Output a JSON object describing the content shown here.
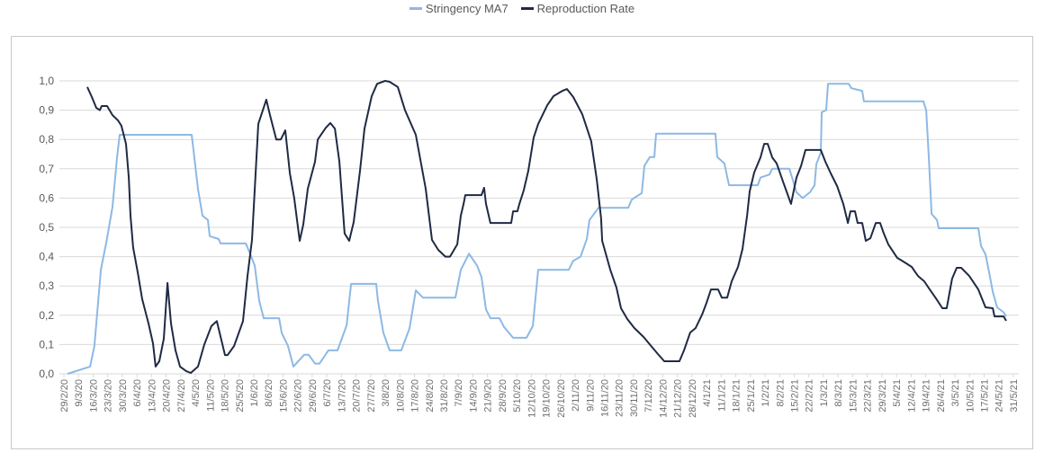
{
  "chart_data": {
    "type": "line",
    "title": "",
    "xlabel": "",
    "ylabel": "",
    "x_unit": "weeks from 29/2/20 (tick index)",
    "ylim": [
      0,
      1.0
    ],
    "yticks": [
      0.0,
      0.1,
      0.2,
      0.3,
      0.4,
      0.5,
      0.6,
      0.7,
      0.8,
      0.9,
      1.0
    ],
    "ytick_labels": [
      "0,0",
      "0,1",
      "0,2",
      "0,3",
      "0,4",
      "0,5",
      "0,6",
      "0,7",
      "0,8",
      "0,9",
      "1,0"
    ],
    "grid": true,
    "legend_position": "top-center",
    "categories": [
      "29/2/20",
      "9/3/20",
      "16/3/20",
      "23/3/20",
      "30/3/20",
      "6/4/20",
      "13/4/20",
      "20/4/20",
      "27/4/20",
      "4/5/20",
      "11/5/20",
      "18/5/20",
      "25/5/20",
      "1/6/20",
      "8/6/20",
      "15/6/20",
      "22/6/20",
      "29/6/20",
      "6/7/20",
      "13/7/20",
      "20/7/20",
      "27/7/20",
      "3/8/20",
      "10/8/20",
      "17/8/20",
      "24/8/20",
      "31/8/20",
      "7/9/20",
      "14/9/20",
      "21/9/20",
      "28/9/20",
      "5/10/20",
      "12/10/20",
      "19/10/20",
      "26/10/20",
      "2/11/20",
      "9/11/20",
      "16/11/20",
      "23/11/20",
      "30/11/20",
      "7/12/20",
      "14/12/20",
      "21/12/20",
      "28/12/20",
      "4/1/21",
      "11/1/21",
      "18/1/21",
      "25/1/21",
      "1/2/21",
      "8/2/21",
      "15/2/21",
      "22/2/21",
      "1/3/21",
      "8/3/21",
      "15/3/21",
      "22/3/21",
      "29/3/21",
      "5/4/21",
      "12/4/21",
      "19/4/21",
      "26/4/21",
      "3/5/21",
      "10/5/21",
      "17/5/21",
      "24/5/21",
      "31/5/21"
    ],
    "series": [
      {
        "name": "Stringency MA7",
        "color": "#8db9e4",
        "points": [
          [
            0.25,
            0
          ],
          [
            1.79,
            0.025
          ],
          [
            2.09,
            0.095
          ],
          [
            2.53,
            0.356
          ],
          [
            2.9,
            0.448
          ],
          [
            3.33,
            0.57
          ],
          [
            3.64,
            0.74
          ],
          [
            3.82,
            0.816
          ],
          [
            8.75,
            0.816
          ],
          [
            8.93,
            0.74
          ],
          [
            9.18,
            0.63
          ],
          [
            9.49,
            0.54
          ],
          [
            9.86,
            0.525
          ],
          [
            9.98,
            0.47
          ],
          [
            10.6,
            0.46
          ],
          [
            10.72,
            0.445
          ],
          [
            12.45,
            0.445
          ],
          [
            12.69,
            0.417
          ],
          [
            13.06,
            0.37
          ],
          [
            13.37,
            0.25
          ],
          [
            13.68,
            0.19
          ],
          [
            14.73,
            0.19
          ],
          [
            14.91,
            0.14
          ],
          [
            15.34,
            0.095
          ],
          [
            15.71,
            0.025
          ],
          [
            16.45,
            0.065
          ],
          [
            16.76,
            0.065
          ],
          [
            17.19,
            0.035
          ],
          [
            17.5,
            0.035
          ],
          [
            18.11,
            0.08
          ],
          [
            18.73,
            0.08
          ],
          [
            19.35,
            0.165
          ],
          [
            19.66,
            0.307
          ],
          [
            21.38,
            0.307
          ],
          [
            21.5,
            0.25
          ],
          [
            21.87,
            0.14
          ],
          [
            22.3,
            0.08
          ],
          [
            23.1,
            0.08
          ],
          [
            23.66,
            0.155
          ],
          [
            24.09,
            0.285
          ],
          [
            24.58,
            0.26
          ],
          [
            26.8,
            0.26
          ],
          [
            27.17,
            0.355
          ],
          [
            27.73,
            0.41
          ],
          [
            28.28,
            0.37
          ],
          [
            28.59,
            0.33
          ],
          [
            28.9,
            0.22
          ],
          [
            29.2,
            0.19
          ],
          [
            29.82,
            0.19
          ],
          [
            30.13,
            0.16
          ],
          [
            30.75,
            0.123
          ],
          [
            31.67,
            0.123
          ],
          [
            32.1,
            0.163
          ],
          [
            32.47,
            0.355
          ],
          [
            34.56,
            0.355
          ],
          [
            34.87,
            0.386
          ],
          [
            35.37,
            0.4
          ],
          [
            35.8,
            0.46
          ],
          [
            35.98,
            0.525
          ],
          [
            36.6,
            0.567
          ],
          [
            38.63,
            0.567
          ],
          [
            38.88,
            0.595
          ],
          [
            39.56,
            0.617
          ],
          [
            39.74,
            0.71
          ],
          [
            40.11,
            0.74
          ],
          [
            40.42,
            0.74
          ],
          [
            40.54,
            0.82
          ],
          [
            44.6,
            0.82
          ],
          [
            44.73,
            0.74
          ],
          [
            45.22,
            0.718
          ],
          [
            45.53,
            0.644
          ],
          [
            47.5,
            0.644
          ],
          [
            47.69,
            0.67
          ],
          [
            48.3,
            0.68
          ],
          [
            48.49,
            0.7
          ],
          [
            49.66,
            0.7
          ],
          [
            49.85,
            0.67
          ],
          [
            50.15,
            0.62
          ],
          [
            50.58,
            0.6
          ],
          [
            51.08,
            0.62
          ],
          [
            51.39,
            0.644
          ],
          [
            51.51,
            0.715
          ],
          [
            51.82,
            0.755
          ],
          [
            51.88,
            0.893
          ],
          [
            52.19,
            0.9
          ],
          [
            52.31,
            0.99
          ],
          [
            53.73,
            0.99
          ],
          [
            53.91,
            0.975
          ],
          [
            54.65,
            0.966
          ],
          [
            54.77,
            0.93
          ],
          [
            58.84,
            0.93
          ],
          [
            59.03,
            0.9
          ],
          [
            59.21,
            0.74
          ],
          [
            59.4,
            0.546
          ],
          [
            59.77,
            0.525
          ],
          [
            59.89,
            0.497
          ],
          [
            62.6,
            0.497
          ],
          [
            62.79,
            0.436
          ],
          [
            63.09,
            0.408
          ],
          [
            63.34,
            0.347
          ],
          [
            63.59,
            0.28
          ],
          [
            63.89,
            0.227
          ],
          [
            64.33,
            0.21
          ],
          [
            64.51,
            0.196
          ]
        ]
      },
      {
        "name": "Reproduction Rate",
        "color": "#1f2a44",
        "points": [
          [
            1.6,
            0.979
          ],
          [
            1.91,
            0.945
          ],
          [
            2.22,
            0.908
          ],
          [
            2.46,
            0.9
          ],
          [
            2.59,
            0.914
          ],
          [
            2.96,
            0.914
          ],
          [
            3.33,
            0.883
          ],
          [
            3.7,
            0.865
          ],
          [
            3.94,
            0.847
          ],
          [
            4.25,
            0.785
          ],
          [
            4.44,
            0.67
          ],
          [
            4.56,
            0.54
          ],
          [
            4.74,
            0.432
          ],
          [
            5.05,
            0.347
          ],
          [
            5.36,
            0.255
          ],
          [
            5.79,
            0.172
          ],
          [
            6.1,
            0.104
          ],
          [
            6.28,
            0.025
          ],
          [
            6.53,
            0.043
          ],
          [
            6.84,
            0.12
          ],
          [
            7.09,
            0.31
          ],
          [
            7.33,
            0.172
          ],
          [
            7.64,
            0.08
          ],
          [
            7.95,
            0.025
          ],
          [
            8.38,
            0.009
          ],
          [
            8.69,
            0.003
          ],
          [
            9.18,
            0.025
          ],
          [
            9.61,
            0.1
          ],
          [
            10.1,
            0.163
          ],
          [
            10.47,
            0.18
          ],
          [
            11.03,
            0.064
          ],
          [
            11.21,
            0.064
          ],
          [
            11.65,
            0.095
          ],
          [
            12.26,
            0.18
          ],
          [
            12.57,
            0.334
          ],
          [
            12.88,
            0.457
          ],
          [
            13.31,
            0.853
          ],
          [
            13.86,
            0.936
          ],
          [
            14.11,
            0.883
          ],
          [
            14.54,
            0.8
          ],
          [
            14.85,
            0.8
          ],
          [
            15.16,
            0.831
          ],
          [
            15.47,
            0.684
          ],
          [
            15.77,
            0.6
          ],
          [
            16.14,
            0.454
          ],
          [
            16.39,
            0.51
          ],
          [
            16.7,
            0.632
          ],
          [
            17.19,
            0.724
          ],
          [
            17.38,
            0.8
          ],
          [
            17.93,
            0.84
          ],
          [
            18.24,
            0.856
          ],
          [
            18.55,
            0.837
          ],
          [
            18.86,
            0.724
          ],
          [
            19.22,
            0.479
          ],
          [
            19.53,
            0.454
          ],
          [
            19.84,
            0.518
          ],
          [
            20.27,
            0.693
          ],
          [
            20.58,
            0.837
          ],
          [
            21.07,
            0.948
          ],
          [
            21.44,
            0.99
          ],
          [
            21.99,
            1.0
          ],
          [
            22.3,
            0.997
          ],
          [
            22.86,
            0.979
          ],
          [
            23.35,
            0.9
          ],
          [
            24.09,
            0.816
          ],
          [
            24.77,
            0.632
          ],
          [
            25.2,
            0.457
          ],
          [
            25.63,
            0.423
          ],
          [
            26.12,
            0.4
          ],
          [
            26.43,
            0.4
          ],
          [
            26.93,
            0.442
          ],
          [
            27.17,
            0.54
          ],
          [
            27.36,
            0.58
          ],
          [
            27.48,
            0.61
          ],
          [
            28.59,
            0.61
          ],
          [
            28.77,
            0.635
          ],
          [
            28.9,
            0.58
          ],
          [
            29.2,
            0.515
          ],
          [
            30.62,
            0.515
          ],
          [
            30.75,
            0.555
          ],
          [
            31.05,
            0.555
          ],
          [
            31.18,
            0.58
          ],
          [
            31.48,
            0.626
          ],
          [
            31.79,
            0.693
          ],
          [
            32.16,
            0.807
          ],
          [
            32.47,
            0.853
          ],
          [
            33.09,
            0.917
          ],
          [
            33.52,
            0.948
          ],
          [
            34.13,
            0.966
          ],
          [
            34.44,
            0.972
          ],
          [
            34.87,
            0.945
          ],
          [
            35.49,
            0.886
          ],
          [
            36.1,
            0.794
          ],
          [
            36.48,
            0.663
          ],
          [
            36.78,
            0.53
          ],
          [
            36.85,
            0.454
          ],
          [
            37.4,
            0.356
          ],
          [
            37.83,
            0.294
          ],
          [
            38.14,
            0.224
          ],
          [
            38.57,
            0.187
          ],
          [
            39.06,
            0.156
          ],
          [
            39.68,
            0.126
          ],
          [
            40.3,
            0.089
          ],
          [
            40.73,
            0.064
          ],
          [
            41.1,
            0.043
          ],
          [
            42.14,
            0.043
          ],
          [
            42.45,
            0.08
          ],
          [
            42.88,
            0.141
          ],
          [
            43.25,
            0.156
          ],
          [
            43.69,
            0.202
          ],
          [
            43.99,
            0.242
          ],
          [
            44.3,
            0.288
          ],
          [
            44.79,
            0.288
          ],
          [
            45.04,
            0.26
          ],
          [
            45.41,
            0.26
          ],
          [
            45.72,
            0.316
          ],
          [
            46.15,
            0.365
          ],
          [
            46.46,
            0.426
          ],
          [
            46.77,
            0.54
          ],
          [
            46.95,
            0.623
          ],
          [
            47.26,
            0.687
          ],
          [
            47.69,
            0.739
          ],
          [
            47.94,
            0.785
          ],
          [
            48.18,
            0.785
          ],
          [
            48.49,
            0.739
          ],
          [
            48.8,
            0.718
          ],
          [
            49.23,
            0.656
          ],
          [
            49.78,
            0.58
          ],
          [
            50.15,
            0.669
          ],
          [
            50.46,
            0.709
          ],
          [
            50.77,
            0.764
          ],
          [
            51.82,
            0.764
          ],
          [
            52.13,
            0.724
          ],
          [
            52.5,
            0.684
          ],
          [
            52.93,
            0.641
          ],
          [
            53.36,
            0.58
          ],
          [
            53.67,
            0.515
          ],
          [
            53.85,
            0.555
          ],
          [
            54.16,
            0.555
          ],
          [
            54.34,
            0.515
          ],
          [
            54.65,
            0.515
          ],
          [
            54.9,
            0.454
          ],
          [
            55.21,
            0.463
          ],
          [
            55.58,
            0.515
          ],
          [
            55.88,
            0.515
          ],
          [
            56.13,
            0.479
          ],
          [
            56.44,
            0.442
          ],
          [
            57.05,
            0.396
          ],
          [
            57.67,
            0.377
          ],
          [
            58.04,
            0.365
          ],
          [
            58.47,
            0.334
          ],
          [
            58.9,
            0.316
          ],
          [
            59.27,
            0.288
          ],
          [
            59.7,
            0.258
          ],
          [
            60.14,
            0.224
          ],
          [
            60.44,
            0.224
          ],
          [
            60.81,
            0.325
          ],
          [
            61.12,
            0.362
          ],
          [
            61.43,
            0.362
          ],
          [
            61.98,
            0.334
          ],
          [
            62.6,
            0.288
          ],
          [
            63.09,
            0.227
          ],
          [
            63.59,
            0.224
          ],
          [
            63.71,
            0.196
          ],
          [
            64.33,
            0.196
          ],
          [
            64.51,
            0.181
          ]
        ]
      }
    ]
  }
}
